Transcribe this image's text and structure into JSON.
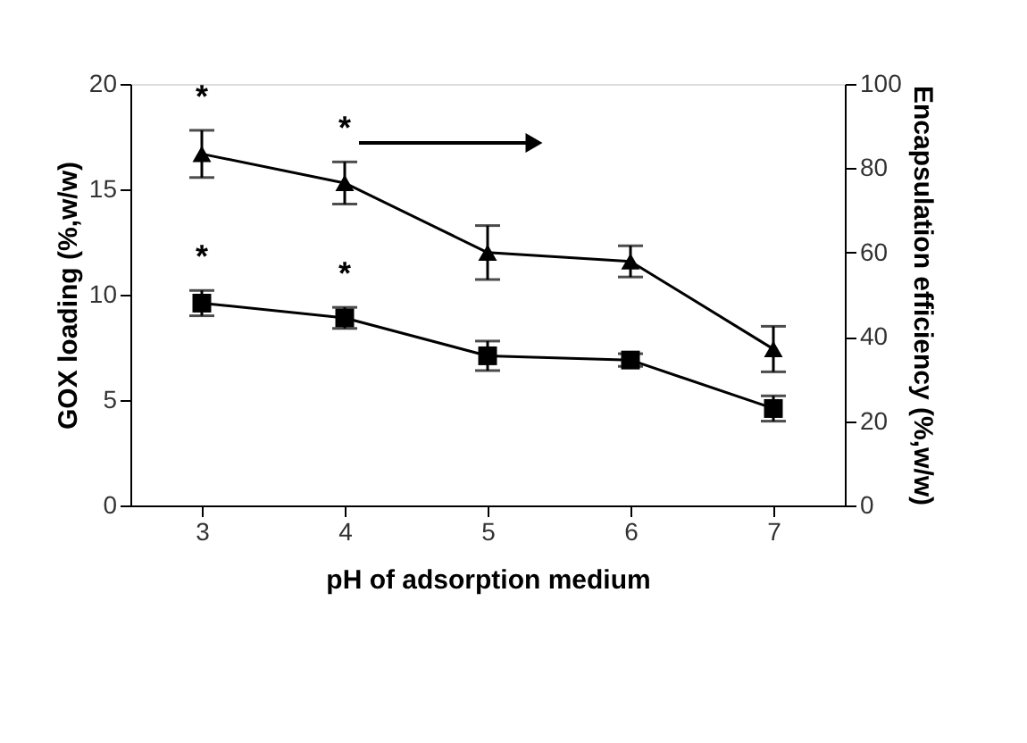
{
  "chart_data": {
    "type": "line",
    "xlabel": "pH of adsorption medium",
    "ylabel": "GOX loading (%,w/w)",
    "y2label": "Encapsulation efficiency (%,w/w)",
    "x": [
      3,
      4,
      5,
      6,
      7
    ],
    "series": [
      {
        "color": "#000000",
        "marker": "square",
        "values": [
          9.6,
          8.9,
          7.1,
          6.9,
          4.6
        ],
        "errors": [
          0.6,
          0.5,
          0.7,
          0.3,
          0.6
        ]
      },
      {
        "color": "#000000",
        "marker": "triangle",
        "axis": "y2",
        "values": [
          83.4,
          76.5,
          60,
          57.9,
          37.1
        ],
        "errors": [
          5.6,
          5,
          6.4,
          3.7,
          5.4
        ]
      }
    ],
    "xlim": [
      2.5,
      7.5
    ],
    "xticks": [
      3,
      4,
      5,
      6,
      7
    ],
    "ylim": [
      0,
      20
    ],
    "yticks": [
      0,
      5,
      10,
      15,
      20
    ],
    "y2lim": [
      0,
      100
    ],
    "y2ticks": [
      0,
      20,
      40,
      60,
      80,
      100
    ],
    "annotations": [
      "*",
      "*",
      "*",
      "*"
    ],
    "grid": false,
    "legend": false
  }
}
